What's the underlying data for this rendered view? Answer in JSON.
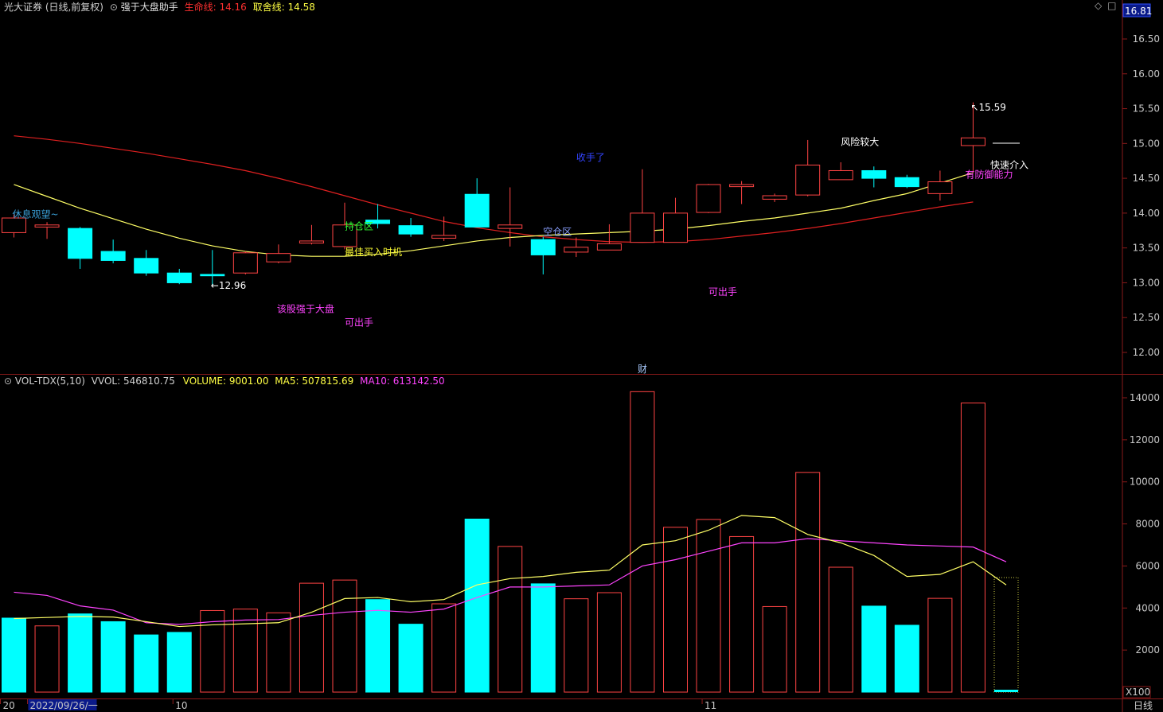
{
  "header": {
    "main": {
      "stock": "光大证券 (日线,前复权)",
      "indicator": "强于大盘助手",
      "life_label": "生命线:",
      "life_value": "14.16",
      "fate_label": "取舍线:",
      "fate_value": "14.58"
    },
    "sub": {
      "name": "VOL-TDX(5,10)",
      "vvol_label": "VVOL:",
      "vvol_value": "546810.75",
      "volume_label": "VOLUME:",
      "volume_value": "9001.00",
      "ma5_label": "MA5:",
      "ma5_value": "507815.69",
      "ma10_label": "MA10:",
      "ma10_value": "613142.50"
    }
  },
  "colors": {
    "up": "#ff4444",
    "down": "#00ffff",
    "life_line": "#e02020",
    "fate_line": "#ffff66",
    "ma5": "#ffff66",
    "ma10": "#ff44ff",
    "grid": "#8a1a1a"
  },
  "chart_data": [
    {
      "type": "candlestick",
      "title": "光大证券 (日线,前复权)",
      "ylim": [
        11.8,
        16.85
      ],
      "y_ticks": [
        "12.00",
        "12.50",
        "13.00",
        "13.50",
        "14.00",
        "14.50",
        "15.00",
        "15.50",
        "16.00",
        "16.50"
      ],
      "price_tag": "16.81",
      "candles": [
        {
          "o": 13.72,
          "c": 13.93,
          "h": 13.98,
          "l": 13.65
        },
        {
          "o": 13.8,
          "c": 13.83,
          "h": 13.87,
          "l": 13.63
        },
        {
          "o": 13.78,
          "c": 13.35,
          "h": 13.8,
          "l": 13.2
        },
        {
          "o": 13.45,
          "c": 13.32,
          "h": 13.62,
          "l": 13.28
        },
        {
          "o": 13.35,
          "c": 13.14,
          "h": 13.47,
          "l": 13.1
        },
        {
          "o": 13.14,
          "c": 13.0,
          "h": 13.2,
          "l": 12.98
        },
        {
          "o": 13.12,
          "c": 13.1,
          "h": 13.47,
          "l": 12.96
        },
        {
          "o": 13.14,
          "c": 13.43,
          "h": 13.45,
          "l": 13.12
        },
        {
          "o": 13.3,
          "c": 13.42,
          "h": 13.55,
          "l": 13.28
        },
        {
          "o": 13.57,
          "c": 13.6,
          "h": 13.83,
          "l": 13.55
        },
        {
          "o": 13.52,
          "c": 13.83,
          "h": 14.15,
          "l": 13.48
        },
        {
          "o": 13.9,
          "c": 13.85,
          "h": 14.13,
          "l": 13.78
        },
        {
          "o": 13.82,
          "c": 13.7,
          "h": 13.93,
          "l": 13.66
        },
        {
          "o": 13.64,
          "c": 13.68,
          "h": 13.95,
          "l": 13.6
        },
        {
          "o": 14.27,
          "c": 13.8,
          "h": 14.5,
          "l": 13.8
        },
        {
          "o": 13.78,
          "c": 13.83,
          "h": 14.37,
          "l": 13.52
        },
        {
          "o": 13.62,
          "c": 13.4,
          "h": 13.66,
          "l": 13.12
        },
        {
          "o": 13.44,
          "c": 13.51,
          "h": 13.65,
          "l": 13.37
        },
        {
          "o": 13.47,
          "c": 13.56,
          "h": 13.84,
          "l": 13.47
        },
        {
          "o": 13.58,
          "c": 14.0,
          "h": 14.63,
          "l": 13.58
        },
        {
          "o": 13.58,
          "c": 14.0,
          "h": 14.22,
          "l": 13.58
        },
        {
          "o": 14.01,
          "c": 14.41,
          "h": 14.42,
          "l": 14.0
        },
        {
          "o": 14.38,
          "c": 14.41,
          "h": 14.46,
          "l": 14.13
        },
        {
          "o": 14.2,
          "c": 14.25,
          "h": 14.28,
          "l": 14.16
        },
        {
          "o": 14.26,
          "c": 14.69,
          "h": 15.05,
          "l": 14.24
        },
        {
          "o": 14.48,
          "c": 14.61,
          "h": 14.73,
          "l": 14.48
        },
        {
          "o": 14.61,
          "c": 14.5,
          "h": 14.67,
          "l": 14.37
        },
        {
          "o": 14.51,
          "c": 14.38,
          "h": 14.55,
          "l": 14.36
        },
        {
          "o": 14.28,
          "c": 14.45,
          "h": 14.61,
          "l": 14.18
        },
        {
          "o": 14.97,
          "c": 15.08,
          "h": 15.59,
          "l": 14.58
        }
      ],
      "current_price": 14.97,
      "life_line": [
        15.11,
        15.06,
        15.0,
        14.93,
        14.86,
        14.78,
        14.7,
        14.61,
        14.5,
        14.38,
        14.25,
        14.12,
        14.0,
        13.88,
        13.79,
        13.72,
        13.66,
        13.62,
        13.59,
        13.58,
        13.59,
        13.62,
        13.67,
        13.72,
        13.78,
        13.85,
        13.93,
        14.01,
        14.09,
        14.16
      ],
      "fate_line": [
        14.41,
        14.24,
        14.07,
        13.92,
        13.77,
        13.64,
        13.53,
        13.45,
        13.4,
        13.38,
        13.38,
        13.41,
        13.46,
        13.53,
        13.6,
        13.65,
        13.68,
        13.7,
        13.72,
        13.74,
        13.77,
        13.82,
        13.88,
        13.93,
        14.0,
        14.07,
        14.18,
        14.28,
        14.43,
        14.58
      ],
      "annotations": [
        {
          "text": "休息观望~",
          "i": 0,
          "y": 13.98,
          "color": "#3aa0d8",
          "dx": -2
        },
        {
          "text": "←12.96",
          "i": 6,
          "y": 12.96,
          "color": "#ffffff",
          "dx": -2
        },
        {
          "text": "该股强于大盘",
          "i": 8,
          "y": 12.62,
          "color": "#ff44ff",
          "dx": -2
        },
        {
          "text": "持仓区",
          "i": 10,
          "y": 13.81,
          "color": "#33ff33",
          "dx": 0
        },
        {
          "text": "最佳买入时机",
          "i": 10,
          "y": 13.44,
          "color": "#ffff33",
          "dx": 0
        },
        {
          "text": "可出手",
          "i": 10,
          "y": 12.43,
          "color": "#ff44ff",
          "dx": 0
        },
        {
          "text": "空仓区",
          "i": 16,
          "y": 13.73,
          "color": "#8aa0ff",
          "dx": 0
        },
        {
          "text": "收手了",
          "i": 17,
          "y": 14.8,
          "color": "#3344ff",
          "dx": 0
        },
        {
          "text": "可出手",
          "i": 21,
          "y": 12.87,
          "color": "#ff44ff",
          "dx": 0
        },
        {
          "text": "风险较大",
          "i": 25,
          "y": 15.02,
          "color": "#ffffff",
          "dx": 0
        },
        {
          "text": "有防御能力",
          "i": 29,
          "y": 14.55,
          "color": "#ff44ff",
          "dx": -10
        },
        {
          "text": "快速介入",
          "i": 30,
          "y": 14.69,
          "color": "#ffffff",
          "dx": -20
        },
        {
          "text": "↖15.59",
          "i": 29,
          "y": 15.52,
          "color": "#ffffff",
          "dx": -3
        }
      ],
      "marker": "财",
      "marker_index": 19
    },
    {
      "type": "bar",
      "title": "VOL-TDX(5,10)",
      "ylim": [
        0,
        15000
      ],
      "y_ticks": [
        "2000",
        "4000",
        "6000",
        "8000",
        "10000",
        "12000",
        "14000"
      ],
      "unit": "X100",
      "volumes": [
        3520,
        3150,
        3720,
        3350,
        2720,
        2840,
        3880,
        3950,
        3770,
        5180,
        5330,
        4400,
        3230,
        4200,
        8230,
        6930,
        5150,
        4440,
        4730,
        14290,
        7840,
        8210,
        7400,
        4070,
        10450,
        5940,
        4090,
        3180,
        4460,
        13750,
        5450
      ],
      "volume_dir": [
        "down",
        "up",
        "down",
        "down",
        "down",
        "down",
        "up",
        "up",
        "up",
        "up",
        "up",
        "down",
        "down",
        "up",
        "down",
        "up",
        "down",
        "up",
        "up",
        "up",
        "up",
        "up",
        "up",
        "up",
        "up",
        "up",
        "down",
        "down",
        "up",
        "up",
        "pending"
      ],
      "ma5": [
        3500,
        3550,
        3600,
        3570,
        3350,
        3120,
        3200,
        3250,
        3300,
        3800,
        4450,
        4500,
        4300,
        4400,
        5100,
        5400,
        5500,
        5700,
        5800,
        7000,
        7200,
        7700,
        8400,
        8300,
        7500,
        7100,
        6500,
        5500,
        5600,
        6200,
        5100
      ],
      "ma10": [
        4750,
        4600,
        4100,
        3900,
        3300,
        3220,
        3350,
        3430,
        3450,
        3650,
        3800,
        3890,
        3800,
        3950,
        4500,
        5000,
        5000,
        5050,
        5100,
        6000,
        6300,
        6700,
        7100,
        7100,
        7300,
        7200,
        7100,
        7000,
        6950,
        6900,
        6200
      ],
      "x_labels": [
        {
          "text": "20",
          "i": 0,
          "dx": -14
        },
        {
          "text": "2022/09/26/一",
          "i": 0,
          "dx": 20,
          "highlight": true
        },
        {
          "text": "10",
          "i": 5,
          "dx": -5
        },
        {
          "text": "11",
          "i": 21,
          "dx": -5
        }
      ],
      "period": "日线"
    }
  ]
}
